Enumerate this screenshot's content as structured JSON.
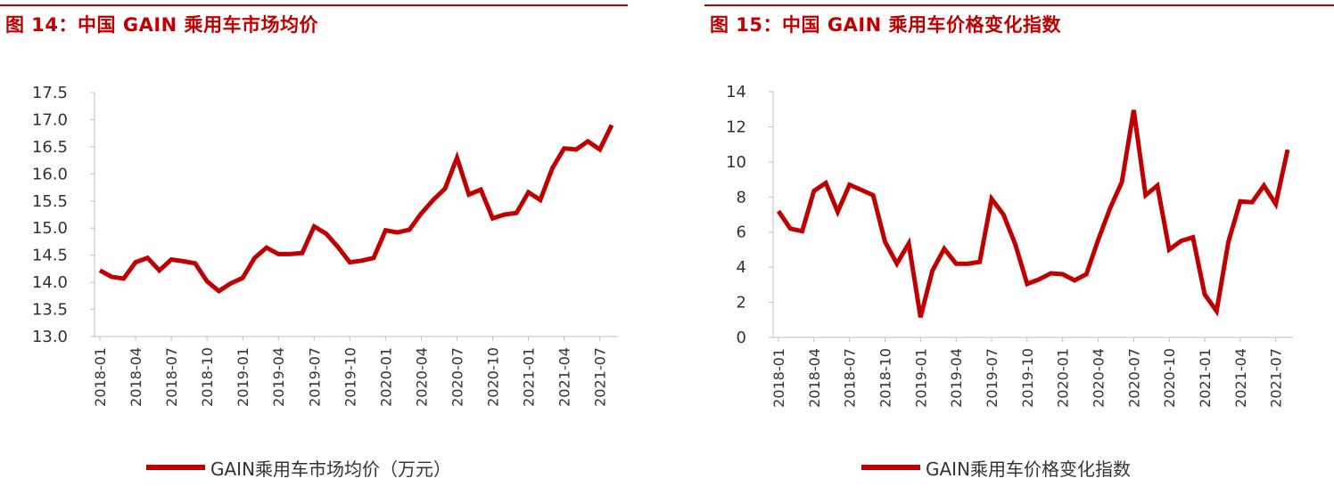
{
  "figures": [
    {
      "title": "图 14：中国 GAIN 乘用车市场均价",
      "legend": "GAIN乘用车市场均价（万元）"
    },
    {
      "title": "图 15：中国 GAIN 乘用车价格变化指数",
      "legend": "GAIN乘用车价格变化指数"
    }
  ],
  "chart_data": [
    {
      "type": "line",
      "title": "图 14：中国 GAIN 乘用车市场均价",
      "xlabel": "",
      "ylabel": "",
      "ylim": [
        13.0,
        17.5
      ],
      "yticks": [
        "13.0",
        "13.5",
        "14.0",
        "14.5",
        "15.0",
        "15.5",
        "16.0",
        "16.5",
        "17.0",
        "17.5"
      ],
      "xtick_labels": [
        "2018-01",
        "2018-04",
        "2018-07",
        "2018-10",
        "2019-01",
        "2019-04",
        "2019-07",
        "2019-10",
        "2020-01",
        "2020-04",
        "2020-07",
        "2020-10",
        "2021-01",
        "2021-04",
        "2021-07"
      ],
      "grid": false,
      "legend_position": "bottom",
      "color": "#c00000",
      "x": [
        "2018-01",
        "2018-02",
        "2018-03",
        "2018-04",
        "2018-05",
        "2018-06",
        "2018-07",
        "2018-08",
        "2018-09",
        "2018-10",
        "2018-11",
        "2018-12",
        "2019-01",
        "2019-02",
        "2019-03",
        "2019-04",
        "2019-05",
        "2019-06",
        "2019-07",
        "2019-08",
        "2019-09",
        "2019-10",
        "2019-11",
        "2019-12",
        "2020-01",
        "2020-02",
        "2020-03",
        "2020-04",
        "2020-05",
        "2020-06",
        "2020-07",
        "2020-08",
        "2020-09",
        "2020-10",
        "2020-11",
        "2020-12",
        "2021-01",
        "2021-02",
        "2021-03",
        "2021-04",
        "2021-05",
        "2021-06",
        "2021-07",
        "2021-08"
      ],
      "series": [
        {
          "name": "GAIN乘用车市场均价（万元）",
          "values": [
            14.22,
            14.1,
            14.07,
            14.37,
            14.45,
            14.22,
            14.42,
            14.39,
            14.35,
            14.02,
            13.84,
            13.98,
            14.08,
            14.45,
            14.64,
            14.52,
            14.52,
            14.54,
            15.03,
            14.9,
            14.65,
            14.37,
            14.4,
            14.45,
            14.96,
            14.92,
            14.97,
            15.27,
            15.52,
            15.73,
            16.3,
            15.62,
            15.71,
            15.18,
            15.25,
            15.28,
            15.66,
            15.52,
            16.1,
            16.47,
            16.45,
            16.6,
            16.45,
            16.9
          ]
        }
      ]
    },
    {
      "type": "line",
      "title": "图 15：中国 GAIN 乘用车价格变化指数",
      "xlabel": "",
      "ylabel": "",
      "ylim": [
        0,
        14
      ],
      "yticks": [
        "0",
        "2",
        "4",
        "6",
        "8",
        "10",
        "12",
        "14"
      ],
      "xtick_labels": [
        "2018-01",
        "2018-04",
        "2018-07",
        "2018-10",
        "2019-01",
        "2019-04",
        "2019-07",
        "2019-10",
        "2020-01",
        "2020-04",
        "2020-07",
        "2020-10",
        "2021-01",
        "2021-04",
        "2021-07"
      ],
      "grid": false,
      "legend_position": "bottom",
      "color": "#c00000",
      "x": [
        "2018-01",
        "2018-02",
        "2018-03",
        "2018-04",
        "2018-05",
        "2018-06",
        "2018-07",
        "2018-08",
        "2018-09",
        "2018-10",
        "2018-11",
        "2018-12",
        "2019-01",
        "2019-02",
        "2019-03",
        "2019-04",
        "2019-05",
        "2019-06",
        "2019-07",
        "2019-08",
        "2019-09",
        "2019-10",
        "2019-11",
        "2019-12",
        "2020-01",
        "2020-02",
        "2020-03",
        "2020-04",
        "2020-05",
        "2020-06",
        "2020-07",
        "2020-08",
        "2020-09",
        "2020-10",
        "2020-11",
        "2020-12",
        "2021-01",
        "2021-02",
        "2021-03",
        "2021-04",
        "2021-05",
        "2021-06",
        "2021-07",
        "2021-08"
      ],
      "series": [
        {
          "name": "GAIN乘用车价格变化指数",
          "values": [
            7.2,
            6.2,
            6.05,
            8.35,
            8.8,
            7.15,
            8.7,
            8.4,
            8.1,
            5.45,
            4.2,
            5.35,
            1.15,
            3.8,
            5.05,
            4.2,
            4.2,
            4.3,
            7.9,
            7.0,
            5.3,
            3.05,
            3.3,
            3.65,
            3.6,
            3.25,
            3.6,
            5.55,
            7.35,
            8.85,
            12.95,
            8.1,
            8.65,
            5.0,
            5.5,
            5.7,
            2.45,
            1.5,
            5.45,
            7.75,
            7.7,
            8.65,
            7.6,
            10.7
          ]
        }
      ]
    }
  ]
}
